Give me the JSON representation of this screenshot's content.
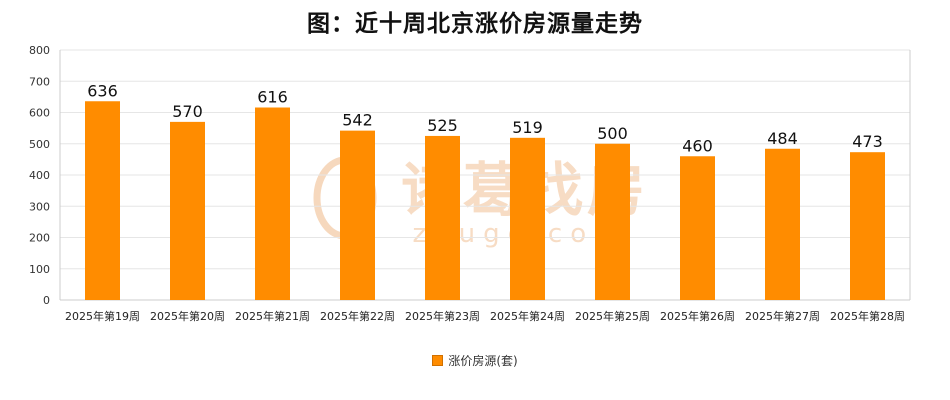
{
  "chart_data": {
    "type": "bar",
    "title": "图：近十周北京涨价房源量走势",
    "categories": [
      "2025年第19周",
      "2025年第20周",
      "2025年第21周",
      "2025年第22周",
      "2025年第23周",
      "2025年第24周",
      "2025年第25周",
      "2025年第26周",
      "2025年第27周",
      "2025年第28周"
    ],
    "series": [
      {
        "name": "涨价房源(套)",
        "values": [
          636,
          570,
          616,
          542,
          525,
          519,
          500,
          460,
          484,
          473
        ]
      }
    ],
    "ylim": [
      0,
      800
    ],
    "yticks": [
      0,
      100,
      200,
      300,
      400,
      500,
      600,
      700,
      800
    ],
    "grid": true,
    "legend_position": "bottom",
    "colors": {
      "bar": "#FF8C00",
      "grid": "#e6e6e6",
      "axis": "#cccccc"
    },
    "watermark": {
      "text": "诸葛找房",
      "subtext": "zhuge.com"
    }
  }
}
